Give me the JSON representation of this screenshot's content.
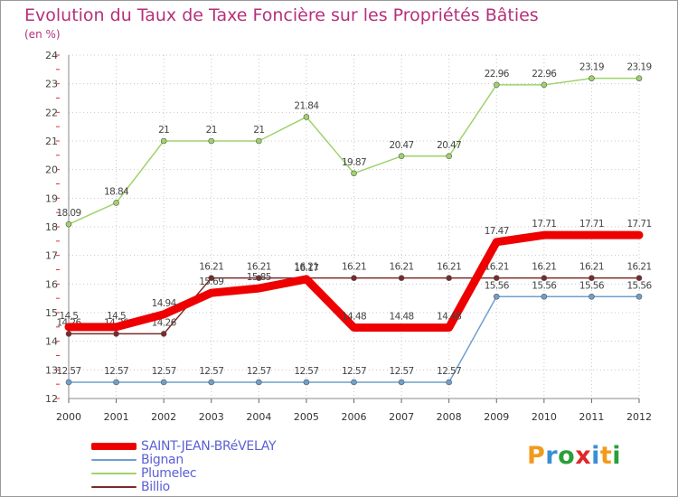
{
  "chart_data": {
    "type": "line",
    "title": "Evolution du Taux de Taxe Foncière sur les Propriétés Bâties",
    "ylabel": "(en %)",
    "xlabel": "",
    "ylim": [
      12,
      24
    ],
    "yticks": [
      "12",
      "13",
      "14",
      "15",
      "16",
      "17",
      "18",
      "19",
      "20",
      "21",
      "22",
      "23",
      "24"
    ],
    "categories": [
      "2000",
      "2001",
      "2002",
      "2003",
      "2004",
      "2005",
      "2006",
      "2007",
      "2008",
      "2009",
      "2010",
      "2011",
      "2012"
    ],
    "series": [
      {
        "name": "Billio",
        "color": "#7a2a2a",
        "values": [
          14.26,
          14.26,
          14.26,
          16.21,
          16.21,
          16.21,
          16.21,
          16.21,
          16.21,
          16.21,
          16.21,
          16.21,
          16.21
        ],
        "labels": [
          "14.26",
          "14.26",
          "14.26",
          "16.21",
          "16.21",
          "16.21",
          "16.21",
          "16.21",
          "16.21",
          "16.21",
          "16.21",
          "16.21",
          "16.21"
        ]
      },
      {
        "name": "Bignan",
        "color": "#6fa0cc",
        "values": [
          12.57,
          12.57,
          12.57,
          12.57,
          12.57,
          12.57,
          12.57,
          12.57,
          12.57,
          15.56,
          15.56,
          15.56,
          15.56
        ],
        "labels": [
          "12.57",
          "12.57",
          "12.57",
          "12.57",
          "12.57",
          "12.57",
          "12.57",
          "12.57",
          "12.57",
          "15.56",
          "15.56",
          "15.56",
          "15.56"
        ]
      },
      {
        "name": "Plumelec",
        "color": "#9fd36a",
        "values": [
          18.09,
          18.84,
          21,
          21,
          21,
          21.84,
          19.87,
          20.47,
          20.47,
          22.96,
          22.96,
          23.19,
          23.19
        ],
        "labels": [
          "18.09",
          "18.84",
          "21",
          "21",
          "21",
          "21.84",
          "19.87",
          "20.47",
          "20.47",
          "22.96",
          "22.96",
          "23.19",
          "23.19"
        ]
      },
      {
        "name": "SAINT-JEAN-BRéVELAY",
        "color": "#ee0000",
        "values": [
          14.5,
          14.5,
          14.94,
          15.69,
          15.85,
          16.17,
          14.48,
          14.48,
          14.48,
          17.47,
          17.71,
          17.71,
          17.71
        ],
        "labels": [
          "14.5",
          "14.5",
          "14.94",
          "15.69",
          "15.85",
          "16.17",
          "14.48",
          "14.48",
          "14.48",
          "17.47",
          "17.71",
          "17.71",
          "17.71"
        ]
      }
    ],
    "legend": [
      "SAINT-JEAN-BRéVELAY",
      "Bignan",
      "Plumelec",
      "Billio"
    ],
    "legend_position": "bottom-left"
  },
  "legend_items": [
    {
      "label": "SAINT-JEAN-BRéVELAY",
      "color": "#ee0000"
    },
    {
      "label": "Bignan",
      "color": "#6fa0cc"
    },
    {
      "label": "Plumelec",
      "color": "#9fd36a"
    },
    {
      "label": "Billio",
      "color": "#7a2a2a"
    }
  ],
  "logo": {
    "text": "Proxiti",
    "letter_colors": [
      "#f29a1c",
      "#3a8fd6",
      "#2a9f3a",
      "#e2262a",
      "#3a8fd6",
      "#f29a1c",
      "#2a9f3a"
    ]
  }
}
